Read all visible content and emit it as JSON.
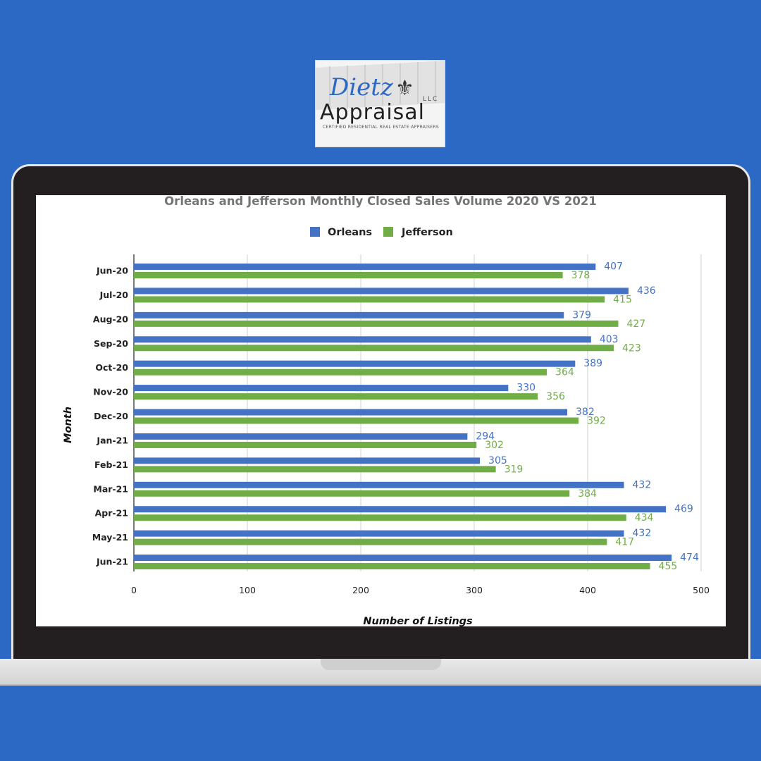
{
  "logo": {
    "script_text": "Dietz",
    "llc_text": "LLC",
    "word_text": "Appraisal",
    "tagline": "CERTIFIED RESIDENTIAL REAL ESTATE APPRAISERS",
    "fleur_icon": "fleur-de-lis-icon"
  },
  "colors": {
    "background": "#2c69c5",
    "orleans": "#4472c4",
    "jefferson": "#70ad47",
    "frame": "#231f20"
  },
  "chart_data": {
    "type": "bar",
    "orientation": "horizontal",
    "title": "Orleans and Jefferson Monthly Closed Sales Volume 2020 VS 2021",
    "xlabel": "Number of Listings",
    "ylabel": "Month",
    "xlim": [
      0,
      500
    ],
    "xticks": [
      0,
      100,
      200,
      300,
      400,
      500
    ],
    "grid": true,
    "legend_position": "top",
    "categories": [
      "Jun-20",
      "Jul-20",
      "Aug-20",
      "Sep-20",
      "Oct-20",
      "Nov-20",
      "Dec-20",
      "Jan-21",
      "Feb-21",
      "Mar-21",
      "Apr-21",
      "May-21",
      "Jun-21"
    ],
    "series": [
      {
        "name": "Orleans",
        "color": "#4472c4",
        "values": [
          407,
          436,
          379,
          403,
          389,
          330,
          382,
          294,
          305,
          432,
          469,
          432,
          474
        ]
      },
      {
        "name": "Jefferson",
        "color": "#70ad47",
        "values": [
          378,
          415,
          427,
          423,
          364,
          356,
          392,
          302,
          319,
          384,
          434,
          417,
          455
        ]
      }
    ]
  }
}
